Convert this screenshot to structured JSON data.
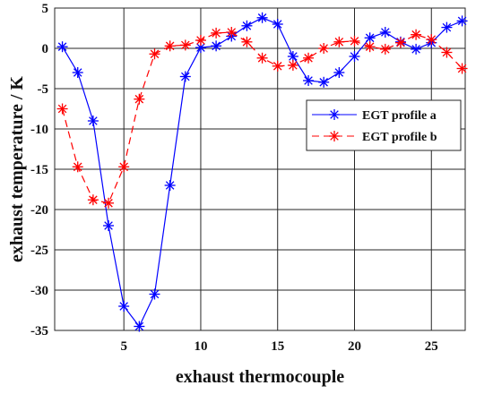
{
  "chart_data": {
    "type": "line",
    "title": "",
    "xlabel": "exhaust thermocouple",
    "ylabel": "exhaust temperature / K",
    "xlim": [
      0.5,
      27.2
    ],
    "ylim": [
      -35,
      5
    ],
    "xticks": [
      5,
      10,
      15,
      20,
      25
    ],
    "yticks": [
      5,
      0,
      -5,
      -10,
      -15,
      -20,
      -25,
      -30,
      -35
    ],
    "grid": true,
    "legend_position": "right",
    "x": [
      1,
      2,
      3,
      4,
      5,
      6,
      7,
      8,
      9,
      10,
      11,
      12,
      13,
      14,
      15,
      16,
      17,
      18,
      19,
      20,
      21,
      22,
      23,
      24,
      25,
      26,
      27
    ],
    "series": [
      {
        "name": "EGT profile a",
        "color": "#0000ff",
        "line_style": "solid",
        "marker": "asterisk",
        "values": [
          0.2,
          -3,
          -9,
          -22,
          -32,
          -34.5,
          -30.5,
          -17,
          -3.5,
          0.1,
          0.3,
          1.5,
          2.8,
          3.8,
          3,
          -1,
          -4,
          -4.2,
          -3,
          -1,
          1.3,
          2,
          0.8,
          -0.1,
          0.7,
          2.6,
          3.4
        ]
      },
      {
        "name": "EGT profile b",
        "color": "#ff0000",
        "line_style": "dashed",
        "marker": "asterisk",
        "values": [
          -7.5,
          -14.7,
          -18.8,
          -19.2,
          -14.7,
          -6.3,
          -0.7,
          0.3,
          0.4,
          1,
          1.9,
          2,
          0.8,
          -1.2,
          -2.2,
          -2.1,
          -1.2,
          0,
          0.8,
          0.9,
          0.2,
          -0.1,
          0.7,
          1.7,
          1.1,
          -0.5,
          -2.5
        ]
      }
    ]
  }
}
